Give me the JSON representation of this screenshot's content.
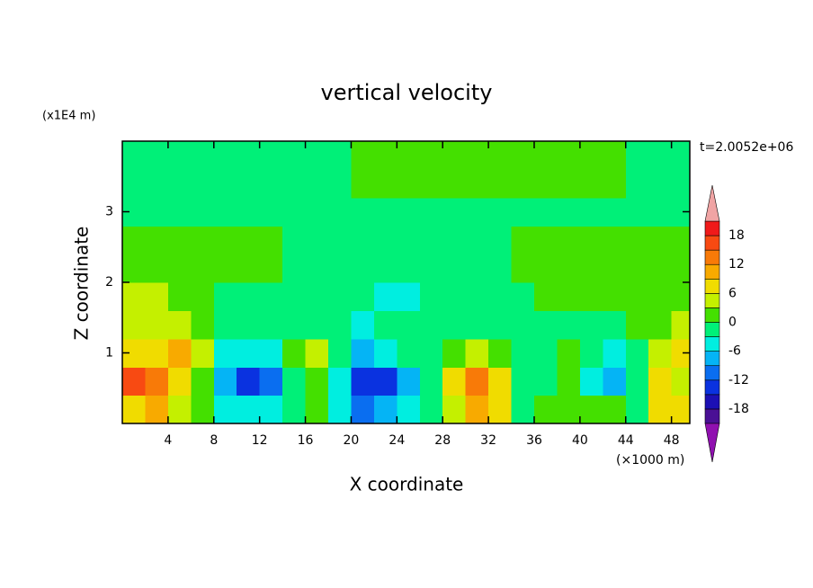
{
  "chart_data": {
    "type": "contour",
    "title": "vertical velocity",
    "x_label": "X coordinate",
    "y_label": "Z coordinate",
    "x_unit_label": "(×1000 m)",
    "y_unit_label": "(x1E4 m)",
    "annotation": "t=2.0052e+06",
    "x": [
      1,
      3,
      5,
      7,
      9,
      11,
      13,
      15,
      17,
      19,
      21,
      23,
      25,
      27,
      29,
      31,
      33,
      35,
      37,
      39,
      41,
      43,
      45,
      47,
      49
    ],
    "y": [
      0.2,
      0.6,
      1.0,
      1.4,
      1.8,
      2.2,
      2.6,
      3.0,
      3.4,
      3.8
    ],
    "values": [
      [
        8,
        9,
        5,
        2,
        -4,
        -6,
        -5,
        -2,
        1,
        -5,
        -10,
        -9,
        -5,
        -1,
        5,
        9,
        6,
        -2,
        1,
        1,
        2,
        0,
        -2,
        6,
        8
      ],
      [
        15,
        12,
        7,
        1,
        -8,
        -13,
        -11,
        -3,
        2,
        -6,
        -13,
        -13,
        -7,
        -1,
        7,
        12,
        8,
        -3,
        -1,
        2,
        -5,
        -9,
        -1,
        7,
        5
      ],
      [
        7,
        7,
        10,
        3,
        -4,
        -6,
        -4,
        2,
        4,
        -3,
        -7,
        -6,
        -3,
        -1,
        2,
        3,
        1,
        -3,
        -1,
        2,
        -2,
        -4,
        -2,
        5,
        6
      ],
      [
        4,
        5,
        5,
        2,
        -1,
        -2,
        -2,
        -2,
        -2,
        -3,
        -4,
        -3,
        -3,
        -2,
        -2,
        -2,
        -2,
        -1,
        -1,
        -1,
        -1,
        -1,
        1,
        2,
        3
      ],
      [
        3,
        3,
        2,
        1,
        -1,
        -1,
        -1,
        -2,
        -2,
        -2,
        -3,
        -4,
        -4,
        -3,
        -2,
        -2,
        -1,
        -1,
        1,
        1,
        1,
        1,
        1,
        1,
        1
      ],
      [
        1,
        1,
        1,
        1,
        1,
        1,
        1,
        -1,
        -1,
        -1,
        -1,
        -2,
        -2,
        -1,
        -1,
        -1,
        -1,
        1,
        1,
        1,
        1,
        1,
        1,
        1,
        1
      ],
      [
        1,
        1,
        1,
        1,
        1,
        1,
        1,
        -1,
        -1,
        -1,
        -1,
        -1,
        -1,
        -1,
        -1,
        -1,
        -1,
        1,
        1,
        1,
        1,
        1,
        1,
        1,
        1
      ],
      [
        -1,
        -1,
        -1,
        -1,
        -1,
        -1,
        -1,
        -1,
        -1,
        -1,
        -1,
        -1,
        -1,
        -1,
        -1,
        -1,
        -1,
        -1,
        -1,
        -1,
        -1,
        -1,
        -1,
        -1,
        -1
      ],
      [
        -1,
        -1,
        -1,
        -1,
        -1,
        -1,
        -1,
        -1,
        -1,
        -1,
        1,
        1,
        1,
        1,
        1,
        1,
        1,
        1,
        1,
        1,
        1,
        1,
        -1,
        -1,
        -1
      ],
      [
        -1,
        -1,
        -1,
        -1,
        -1,
        -1,
        -1,
        -1,
        -1,
        -1,
        1,
        1,
        1,
        1,
        1,
        1,
        1,
        1,
        1,
        1,
        1,
        1,
        -1,
        -1,
        -1
      ]
    ],
    "xlim": [
      0,
      49.6
    ],
    "ylim": [
      0,
      4
    ],
    "xticks": [
      4,
      8,
      12,
      16,
      20,
      24,
      28,
      32,
      36,
      40,
      44,
      48
    ],
    "yticks": [
      1,
      2,
      3
    ],
    "levels": [
      -21,
      -18,
      -15,
      -12,
      -9,
      -6,
      -3,
      0,
      3,
      6,
      9,
      12,
      15,
      18,
      21
    ],
    "colors": [
      "#4a1095",
      "#1c10b4",
      "#0a32e0",
      "#0a6ef0",
      "#05b4f5",
      "#00eee0",
      "#00f078",
      "#44e000",
      "#c4f000",
      "#f0dc00",
      "#f8aa00",
      "#f87a08",
      "#f84a12",
      "#f01a1a"
    ],
    "under_color": "#9010b0",
    "over_color": "#f0a4a4",
    "colorbar_ticks": [
      -18,
      -12,
      -6,
      0,
      6,
      12,
      18
    ]
  }
}
